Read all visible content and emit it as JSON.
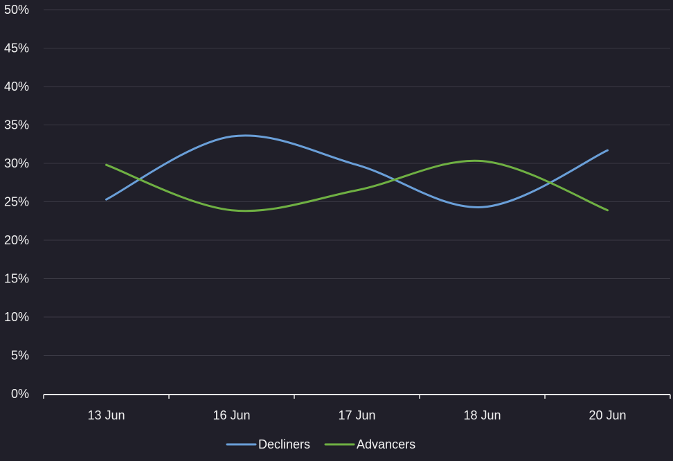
{
  "colors": {
    "background": "#201f29",
    "grid": "#3b3a45",
    "axis": "#e8e8e8",
    "text": "#f2f2f2"
  },
  "chart_data": {
    "type": "line",
    "title": "",
    "xlabel": "",
    "ylabel": "",
    "categories": [
      "13 Jun",
      "16 Jun",
      "17 Jun",
      "18 Jun",
      "20 Jun"
    ],
    "y_ticks": [
      "0%",
      "5%",
      "10%",
      "15%",
      "20%",
      "25%",
      "30%",
      "35%",
      "40%",
      "45%",
      "50%"
    ],
    "ylim": [
      0,
      50
    ],
    "y_unit": "%",
    "grid": true,
    "smooth": true,
    "legend_position": "bottom",
    "series": [
      {
        "name": "Decliners",
        "color": "#6a9fd8",
        "values": [
          25.3,
          33.5,
          29.8,
          24.3,
          31.7
        ]
      },
      {
        "name": "Advancers",
        "color": "#6fb043",
        "values": [
          29.8,
          23.9,
          26.5,
          30.3,
          23.9
        ]
      }
    ]
  }
}
